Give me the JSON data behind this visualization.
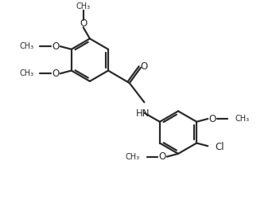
{
  "bg_color": "#ffffff",
  "line_color": "#2a2a2a",
  "line_width": 1.6,
  "font_size": 8.5,
  "figsize": [
    3.52,
    2.71
  ],
  "dpi": 100,
  "xlim": [
    -3.2,
    4.8
  ],
  "ylim": [
    -3.8,
    3.2
  ]
}
